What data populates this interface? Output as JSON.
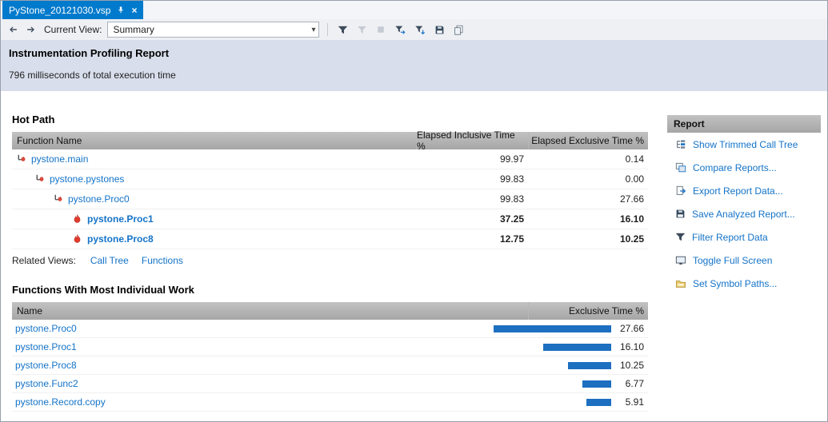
{
  "tab": {
    "title": "PyStone_20121030.vsp",
    "pin_icon": "pin-icon",
    "close_glyph": "×"
  },
  "toolbar": {
    "back_icon": "back-arrow-icon",
    "forward_icon": "forward-arrow-icon",
    "current_view_label": "Current View:",
    "view_value": "Summary",
    "action_icons": [
      {
        "name": "filter-icon",
        "disabled": false
      },
      {
        "name": "clear-filter-icon",
        "disabled": true
      },
      {
        "name": "stop-icon",
        "disabled": true
      },
      {
        "name": "export-filter-icon",
        "disabled": false
      },
      {
        "name": "apply-filter-icon",
        "disabled": false
      },
      {
        "name": "save-report-icon",
        "disabled": false
      },
      {
        "name": "copy-report-icon",
        "disabled": false
      }
    ]
  },
  "report_header": {
    "title": "Instrumentation Profiling Report",
    "subtitle": "796 milliseconds of total execution time"
  },
  "hot_path": {
    "title": "Hot Path",
    "columns": [
      "Function Name",
      "Elapsed Inclusive Time %",
      "Elapsed Exclusive Time %"
    ],
    "rows": [
      {
        "name": "pystone.main",
        "indent": 0,
        "icon": "hotpath-icon",
        "inclusive": "99.97",
        "exclusive": "0.14",
        "bold": false
      },
      {
        "name": "pystone.pystones",
        "indent": 1,
        "icon": "hotpath-icon",
        "inclusive": "99.83",
        "exclusive": "0.00",
        "bold": false
      },
      {
        "name": "pystone.Proc0",
        "indent": 2,
        "icon": "hotpath-icon",
        "inclusive": "99.83",
        "exclusive": "27.66",
        "bold": false
      },
      {
        "name": "pystone.Proc1",
        "indent": 3,
        "icon": "flame-icon",
        "inclusive": "37.25",
        "exclusive": "16.10",
        "bold": true
      },
      {
        "name": "pystone.Proc8",
        "indent": 3,
        "icon": "flame-icon",
        "inclusive": "12.75",
        "exclusive": "10.25",
        "bold": true
      }
    ],
    "related_views_label": "Related Views:",
    "related_views": [
      "Call Tree",
      "Functions"
    ]
  },
  "individual_work": {
    "title": "Functions With Most Individual Work",
    "columns": [
      "Name",
      "Exclusive Time %"
    ],
    "rows": [
      {
        "name": "pystone.Proc0",
        "value": "27.66"
      },
      {
        "name": "pystone.Proc1",
        "value": "16.10"
      },
      {
        "name": "pystone.Proc8",
        "value": "10.25"
      },
      {
        "name": "pystone.Func2",
        "value": "6.77"
      },
      {
        "name": "pystone.Record.copy",
        "value": "5.91"
      }
    ]
  },
  "report_panel": {
    "title": "Report",
    "items": [
      {
        "icon": "trimmed-call-tree-icon",
        "label": "Show Trimmed Call Tree"
      },
      {
        "icon": "compare-reports-icon",
        "label": "Compare Reports..."
      },
      {
        "icon": "export-report-icon",
        "label": "Export Report Data..."
      },
      {
        "icon": "save-report-icon",
        "label": "Save Analyzed Report..."
      },
      {
        "icon": "filter-icon",
        "label": "Filter Report Data"
      },
      {
        "icon": "full-screen-icon",
        "label": "Toggle Full Screen"
      },
      {
        "icon": "symbol-paths-icon",
        "label": "Set Symbol Paths..."
      }
    ]
  },
  "colors": {
    "tab_accent": "#007acc",
    "link": "#1473c8",
    "bar": "#1d6fc0",
    "flame": "#e23b2e",
    "table_header_top": "#c2c2c2",
    "table_header_bottom": "#a6a6a6",
    "banner_bg": "#d8deeb"
  }
}
